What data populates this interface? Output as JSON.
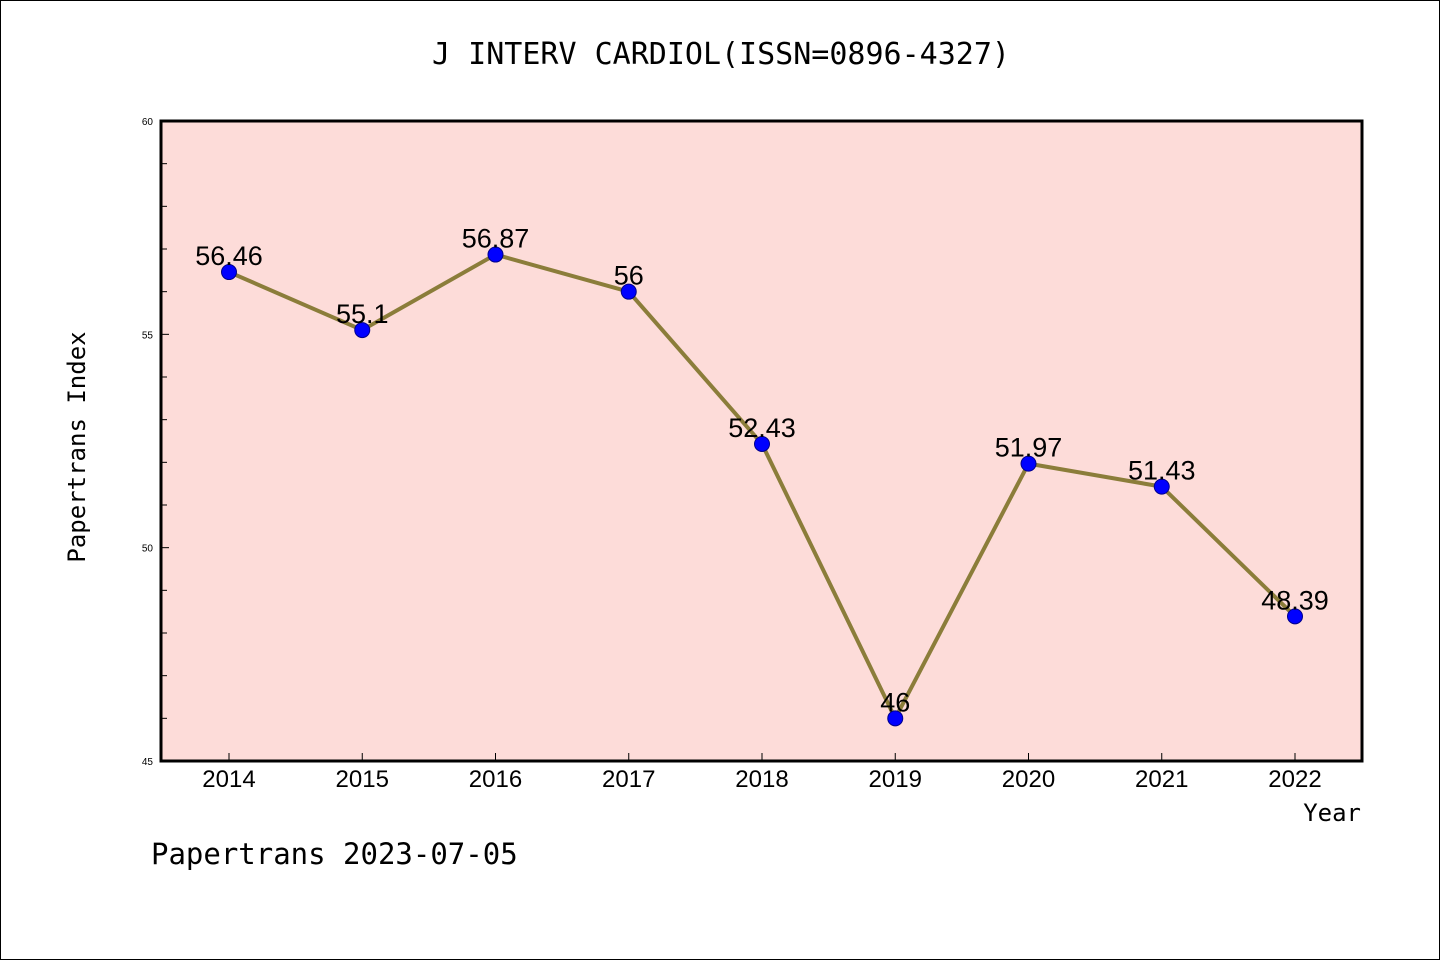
{
  "chart_data": {
    "type": "line",
    "title": "J INTERV CARDIOL(ISSN=0896-4327)",
    "xlabel": "Year",
    "ylabel": "Papertrans Index",
    "categories": [
      "2014",
      "2015",
      "2016",
      "2017",
      "2018",
      "2019",
      "2020",
      "2021",
      "2022"
    ],
    "series": [
      {
        "values": [
          56.46,
          55.1,
          56.87,
          56,
          52.43,
          46,
          51.97,
          51.43,
          48.39
        ],
        "labels": [
          "56.46",
          "55.1",
          "56.87",
          "56",
          "52.43",
          "46",
          "51.97",
          "51.43",
          "48.39"
        ]
      }
    ],
    "ylim": [
      45,
      60
    ],
    "yticks": [
      "45",
      "50",
      "55",
      "60"
    ],
    "grid": false,
    "background_color": "#fddcd9",
    "line_color": "#8b7d3a",
    "marker_color": "#0000ff",
    "footer": "Papertrans 2023-07-05"
  }
}
